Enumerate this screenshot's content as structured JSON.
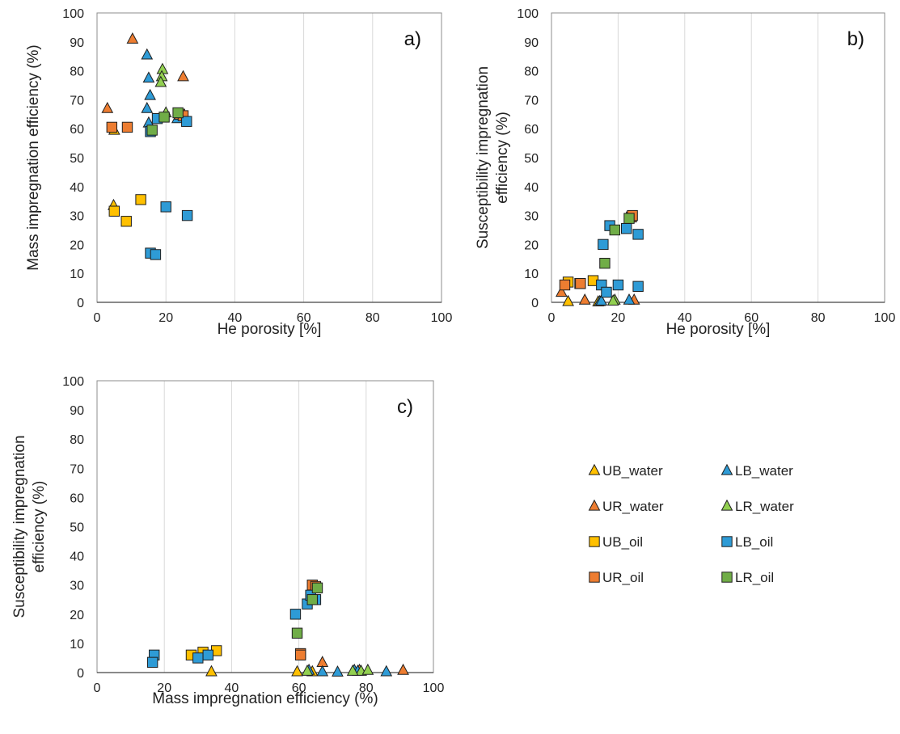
{
  "chart_data": [
    {
      "panel": "a)",
      "type": "scatter",
      "xlabel": "He porosity [%]",
      "ylabel": "Mass impregnation efficiency (%)",
      "xlim": [
        0,
        100
      ],
      "ylim": [
        0,
        100
      ],
      "xticks": [
        0,
        20,
        40,
        60,
        80,
        100
      ],
      "yticks": [
        0,
        10,
        20,
        30,
        40,
        50,
        60,
        70,
        80,
        90,
        100
      ],
      "grid": "vertical",
      "series": [
        {
          "name": "UB_water",
          "points": [
            [
              4.8,
              33.5
            ],
            [
              5.0,
              59.5
            ]
          ]
        },
        {
          "name": "UR_water",
          "points": [
            [
              3.0,
              67.0
            ],
            [
              10.3,
              91.0
            ],
            [
              25.0,
              78.0
            ]
          ]
        },
        {
          "name": "LB_water",
          "points": [
            [
              14.5,
              85.5
            ],
            [
              15.0,
              77.5
            ],
            [
              15.4,
              71.5
            ],
            [
              14.5,
              67.0
            ],
            [
              15.0,
              62.0
            ],
            [
              23.3,
              63.5
            ]
          ]
        },
        {
          "name": "LR_water",
          "points": [
            [
              19.0,
              80.5
            ],
            [
              18.8,
              78.0
            ],
            [
              18.5,
              76.0
            ],
            [
              20.0,
              65.5
            ]
          ]
        },
        {
          "name": "UB_oil",
          "points": [
            [
              5.0,
              31.5
            ],
            [
              8.5,
              28.0
            ],
            [
              12.7,
              35.5
            ]
          ]
        },
        {
          "name": "UR_oil",
          "points": [
            [
              4.3,
              60.5
            ],
            [
              8.8,
              60.5
            ],
            [
              24.0,
              65.0
            ],
            [
              25.0,
              64.5
            ]
          ]
        },
        {
          "name": "LB_oil",
          "points": [
            [
              15.5,
              59.0
            ],
            [
              17.5,
              63.5
            ],
            [
              26.0,
              62.5
            ],
            [
              20.0,
              33.0
            ],
            [
              26.2,
              30.0
            ],
            [
              15.5,
              17.0
            ],
            [
              17.0,
              16.5
            ]
          ]
        },
        {
          "name": "LR_oil",
          "points": [
            [
              16.0,
              59.5
            ],
            [
              19.5,
              64.0
            ],
            [
              23.5,
              65.5
            ]
          ]
        }
      ]
    },
    {
      "panel": "b)",
      "type": "scatter",
      "xlabel": "He porosity [%]",
      "ylabel": "Susceptibility  impregnation efficiency (%)",
      "xlim": [
        0,
        100
      ],
      "ylim": [
        0,
        100
      ],
      "xticks": [
        0,
        20,
        40,
        60,
        80,
        100
      ],
      "yticks": [
        0,
        10,
        20,
        30,
        40,
        50,
        60,
        70,
        80,
        90,
        100
      ],
      "grid": "vertical",
      "series": [
        {
          "name": "UB_water",
          "points": [
            [
              5.0,
              0.3
            ],
            [
              14.0,
              0.2
            ]
          ]
        },
        {
          "name": "UR_water",
          "points": [
            [
              3.0,
              3.5
            ],
            [
              10.0,
              0.8
            ],
            [
              24.8,
              0.8
            ]
          ]
        },
        {
          "name": "LB_water",
          "points": [
            [
              14.5,
              0.3
            ],
            [
              15.0,
              0.5
            ],
            [
              23.3,
              0.8
            ]
          ]
        },
        {
          "name": "LR_water",
          "points": [
            [
              19.0,
              0.8
            ],
            [
              18.5,
              0.5
            ]
          ]
        },
        {
          "name": "UB_oil",
          "points": [
            [
              5.0,
              7.0
            ],
            [
              8.5,
              6.5
            ],
            [
              12.5,
              7.5
            ]
          ]
        },
        {
          "name": "UR_oil",
          "points": [
            [
              4.0,
              6.0
            ],
            [
              8.7,
              6.5
            ],
            [
              24.0,
              29.5
            ],
            [
              24.3,
              30.0
            ]
          ]
        },
        {
          "name": "LB_oil",
          "points": [
            [
              15.0,
              6.0
            ],
            [
              16.5,
              3.5
            ],
            [
              20.0,
              6.0
            ],
            [
              26.0,
              5.5
            ],
            [
              15.5,
              20.0
            ],
            [
              17.5,
              26.5
            ],
            [
              22.5,
              25.5
            ],
            [
              26.0,
              23.5
            ]
          ]
        },
        {
          "name": "LR_oil",
          "points": [
            [
              16.0,
              13.5
            ],
            [
              19.0,
              25.0
            ],
            [
              23.3,
              29.0
            ]
          ]
        }
      ]
    },
    {
      "panel": "c)",
      "type": "scatter",
      "xlabel": "Mass impregnation efficiency (%)",
      "ylabel": "Susceptibility  impregnation efficiency (%)",
      "xlim": [
        0,
        100
      ],
      "ylim": [
        0,
        100
      ],
      "xticks": [
        0,
        20,
        40,
        60,
        80,
        100
      ],
      "yticks": [
        0,
        10,
        20,
        30,
        40,
        50,
        60,
        70,
        80,
        90,
        100
      ],
      "grid": "vertical",
      "series": [
        {
          "name": "UB_water",
          "points": [
            [
              34.0,
              0.3
            ],
            [
              59.5,
              0.3
            ],
            [
              64.0,
              0.3
            ]
          ]
        },
        {
          "name": "UR_water",
          "points": [
            [
              67.0,
              3.5
            ],
            [
              91.0,
              0.8
            ],
            [
              78.0,
              0.8
            ]
          ]
        },
        {
          "name": "LB_water",
          "points": [
            [
              63.0,
              0.8
            ],
            [
              67.0,
              0.3
            ],
            [
              71.5,
              0.2
            ],
            [
              76.5,
              0.8
            ],
            [
              77.5,
              0.5
            ],
            [
              86.0,
              0.3
            ]
          ]
        },
        {
          "name": "LR_water",
          "points": [
            [
              62.5,
              0.5
            ],
            [
              78.5,
              0.5
            ],
            [
              80.5,
              0.8
            ],
            [
              76.0,
              0.5
            ]
          ]
        },
        {
          "name": "UB_oil",
          "points": [
            [
              28.0,
              6.0
            ],
            [
              31.5,
              7.0
            ],
            [
              35.5,
              7.5
            ]
          ]
        },
        {
          "name": "UR_oil",
          "points": [
            [
              60.5,
              6.5
            ],
            [
              60.5,
              6.0
            ],
            [
              64.0,
              30.0
            ],
            [
              65.0,
              29.5
            ]
          ]
        },
        {
          "name": "LB_oil",
          "points": [
            [
              17.0,
              6.0
            ],
            [
              16.5,
              3.5
            ],
            [
              30.0,
              5.0
            ],
            [
              33.0,
              6.0
            ],
            [
              59.0,
              20.0
            ],
            [
              62.5,
              23.5
            ],
            [
              63.5,
              26.5
            ],
            [
              65.0,
              25.0
            ]
          ]
        },
        {
          "name": "LR_oil",
          "points": [
            [
              59.5,
              13.5
            ],
            [
              64.0,
              25.0
            ],
            [
              65.5,
              29.0
            ]
          ]
        }
      ]
    }
  ],
  "legend": {
    "placement": "right of panel c)",
    "items": [
      {
        "name": "UB_water",
        "marker": "triangle",
        "color": "#FFC000"
      },
      {
        "name": "LB_water",
        "marker": "triangle",
        "color": "#2E9BD6"
      },
      {
        "name": "UR_water",
        "marker": "triangle",
        "color": "#ED7D31"
      },
      {
        "name": "LR_water",
        "marker": "triangle",
        "color": "#92D050"
      },
      {
        "name": "UB_oil",
        "marker": "square",
        "color": "#FFC000"
      },
      {
        "name": "LB_oil",
        "marker": "square",
        "color": "#2E9BD6"
      },
      {
        "name": "UR_oil",
        "marker": "square",
        "color": "#ED7D31"
      },
      {
        "name": "LR_oil",
        "marker": "square",
        "color": "#70AD47"
      }
    ]
  },
  "series_colors": {
    "UB_water": "#FFC000",
    "UR_water": "#ED7D31",
    "LB_water": "#2E9BD6",
    "LR_water": "#92D050",
    "UB_oil": "#FFC000",
    "UR_oil": "#ED7D31",
    "LB_oil": "#2E9BD6",
    "LR_oil": "#70AD47"
  },
  "series_markers": {
    "UB_water": "triangle",
    "UR_water": "triangle",
    "LB_water": "triangle",
    "LR_water": "triangle",
    "UB_oil": "square",
    "UR_oil": "square",
    "LB_oil": "square",
    "LR_oil": "square"
  }
}
